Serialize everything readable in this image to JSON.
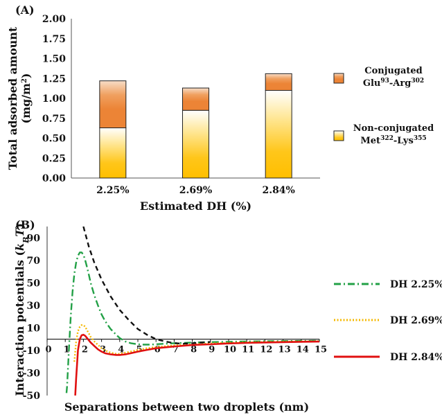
{
  "chart_data": [
    {
      "panel_label": "(A)",
      "type": "bar",
      "stacked": true,
      "categories": [
        "2.25%",
        "2.69%",
        "2.84%"
      ],
      "series": [
        {
          "name_lines": [
            "Non-conjugated",
            "Met",
            "322",
            "-Lys",
            "355"
          ],
          "values": [
            0.63,
            0.85,
            1.1
          ]
        },
        {
          "name_lines": [
            "Conjugated",
            "Glu",
            "93",
            "-Arg",
            "302"
          ],
          "values": [
            0.59,
            0.28,
            0.21
          ]
        }
      ],
      "xlabel": "Estimated DH (%)",
      "ylabel": [
        "Total adsorbed amount",
        "(mg/m",
        "2",
        ")"
      ],
      "ylim": [
        0,
        2.0
      ],
      "yticks": [
        "0.00",
        "0.25",
        "0.50",
        "0.75",
        "1.00",
        "1.25",
        "1.50",
        "1.75",
        "2.00"
      ],
      "legend_position": "right"
    },
    {
      "panel_label": "(B)",
      "type": "line",
      "series": [
        {
          "name": "DH 2.25%",
          "color": "#22a046",
          "dash": "dashdot",
          "x": [
            1.0,
            1.1,
            1.2,
            1.3,
            1.4,
            1.5,
            1.6,
            1.7,
            1.8,
            1.9,
            2.0,
            2.1,
            2.2,
            2.3,
            2.4,
            2.6,
            2.8,
            3.0,
            3.2,
            3.5,
            3.8,
            4.0,
            4.3,
            4.6,
            5.0,
            5.3,
            5.6,
            6.0,
            6.5,
            7.0,
            8.0,
            9.0,
            10.0,
            11.0,
            12.0,
            13.0,
            14.0,
            15.0
          ],
          "y": [
            -60,
            -42,
            -10,
            20,
            42,
            58,
            68,
            74,
            77,
            77,
            75,
            70,
            64,
            57,
            50,
            39,
            30,
            22,
            16,
            9,
            4,
            1,
            -2,
            -3.5,
            -4.5,
            -4.8,
            -4.8,
            -4.5,
            -4,
            -3.6,
            -3,
            -2.6,
            -2.3,
            -2,
            -1.8,
            -1.6,
            -1.5,
            -1.4
          ]
        },
        {
          "name": "DH 2.69%",
          "color": "#f5b800",
          "dash": "dotted",
          "x": [
            1.5,
            1.6,
            1.7,
            1.8,
            1.9,
            2.0,
            2.1,
            2.2,
            2.3,
            2.4,
            2.6,
            2.8,
            3.0,
            3.2,
            3.5,
            3.8,
            4.0,
            4.3,
            4.6,
            5.0,
            5.5,
            6.0,
            7.0,
            8.0,
            9.0,
            10.0,
            11.0,
            12.0,
            13.0,
            14.0,
            15.0
          ],
          "y": [
            -20,
            -2,
            7,
            11,
            12.5,
            12.5,
            11,
            8,
            5,
            2,
            -2,
            -5,
            -8,
            -10,
            -12,
            -13,
            -13,
            -12,
            -11,
            -9.5,
            -8,
            -7,
            -5.5,
            -4.5,
            -3.8,
            -3.2,
            -2.8,
            -2.5,
            -2.2,
            -2,
            -1.8
          ]
        },
        {
          "name": "DH 2.84%",
          "color": "#e01010",
          "dash": "solid",
          "x": [
            1.55,
            1.6,
            1.7,
            1.8,
            1.9,
            2.0,
            2.1,
            2.2,
            2.3,
            2.4,
            2.6,
            2.8,
            3.0,
            3.2,
            3.5,
            3.8,
            4.0,
            4.3,
            4.6,
            5.0,
            5.5,
            6.0,
            7.0,
            8.0,
            9.0,
            10.0,
            11.0,
            12.0,
            13.0,
            14.0,
            15.0
          ],
          "y": [
            -50,
            -35,
            -10,
            0,
            3.5,
            4,
            3,
            1,
            -1,
            -3,
            -6,
            -9,
            -11,
            -12.5,
            -13.5,
            -14,
            -14,
            -13.5,
            -12.5,
            -11,
            -9.5,
            -8,
            -6.5,
            -5.2,
            -4.5,
            -3.8,
            -3.3,
            -2.9,
            -2.6,
            -2.3,
            -2.1
          ]
        },
        {
          "color": "#111111",
          "dash": "dashed",
          "x": [
            2.0,
            2.3,
            2.6,
            3.0,
            3.5,
            4.0,
            4.5,
            5.0,
            5.5,
            6.0,
            6.5,
            7.0,
            7.5,
            8.0,
            8.5,
            9.0
          ],
          "y": [
            100,
            82,
            68,
            53,
            38,
            26,
            17,
            9,
            4,
            0,
            -2,
            -3.5,
            -4,
            -3.5,
            -3,
            -2.5
          ]
        }
      ],
      "xlabel": "Separations between two droplets (nm)",
      "ylabel_text": "Interaction potentials (",
      "ylabel_unit_k": "k",
      "ylabel_unit_sub": "B",
      "ylabel_unit_t": "T",
      "ylabel_close": ")",
      "xlim": [
        0,
        15
      ],
      "ylim": [
        -50,
        100
      ],
      "xticks": [
        "0",
        "1",
        "2",
        "3",
        "4",
        "5",
        "6",
        "7",
        "8",
        "9",
        "10",
        "11",
        "12",
        "13",
        "14",
        "15"
      ],
      "yticks": [
        "-50",
        "-30",
        "-10",
        "10",
        "30",
        "50",
        "70",
        "90"
      ],
      "legend_position": "right"
    }
  ]
}
